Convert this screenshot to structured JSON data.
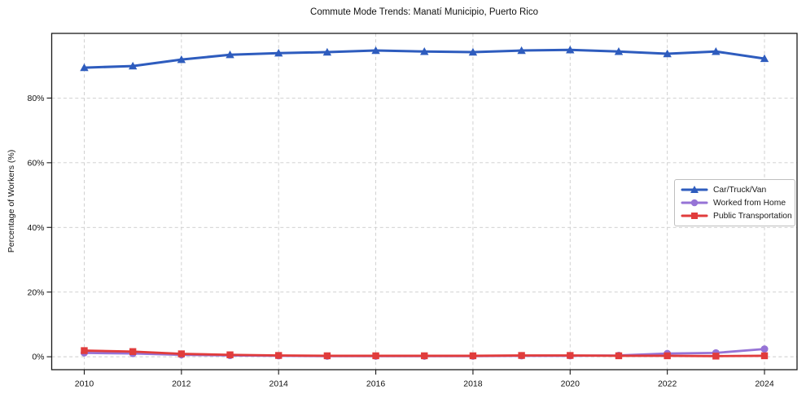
{
  "title": "Commute Mode Trends: Manatí Municipio, Puerto Rico",
  "chart_data": {
    "type": "line",
    "title": "Commute Mode Trends: Manatí Municipio, Puerto Rico",
    "xlabel": "",
    "ylabel": "Percentage of Workers (%)",
    "x": [
      2010,
      2011,
      2012,
      2013,
      2014,
      2015,
      2016,
      2017,
      2018,
      2019,
      2020,
      2021,
      2022,
      2023,
      2024
    ],
    "series": [
      {
        "name": "Car/Truck/Van",
        "color": "#2e5cbe",
        "marker": "triangle",
        "values": [
          89.4,
          89.9,
          91.9,
          93.4,
          93.9,
          94.2,
          94.7,
          94.4,
          94.2,
          94.7,
          94.9,
          94.4,
          93.7,
          94.4,
          92.2
        ]
      },
      {
        "name": "Worked from Home",
        "color": "#9673d6",
        "marker": "circle",
        "values": [
          1.2,
          1.0,
          0.6,
          0.4,
          0.3,
          0.2,
          0.2,
          0.2,
          0.2,
          0.3,
          0.3,
          0.4,
          1.0,
          1.2,
          2.4
        ]
      },
      {
        "name": "Public Transportation",
        "color": "#e13c3c",
        "marker": "square",
        "values": [
          1.9,
          1.6,
          0.9,
          0.6,
          0.4,
          0.3,
          0.3,
          0.3,
          0.3,
          0.4,
          0.4,
          0.3,
          0.3,
          0.2,
          0.3
        ]
      }
    ],
    "xticks": [
      2010,
      2012,
      2014,
      2016,
      2018,
      2020,
      2022,
      2024
    ],
    "xtick_labels": [
      "2010",
      "2012",
      "2014",
      "2016",
      "2018",
      "2020",
      "2022",
      "2024"
    ],
    "yticks": [
      0,
      20,
      40,
      60,
      80
    ],
    "ytick_labels": [
      "0%",
      "20%",
      "40%",
      "60%",
      "80%"
    ],
    "xlim": [
      2009.33,
      2024.67
    ],
    "ylim": [
      -4,
      100
    ],
    "grid": true,
    "legend_position": "center right"
  }
}
